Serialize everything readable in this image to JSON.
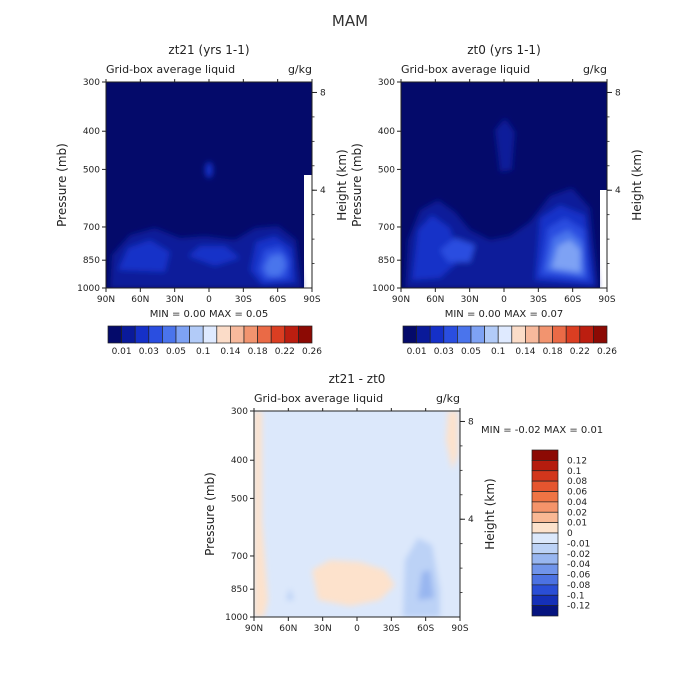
{
  "page_title": "MAM",
  "chart_data": [
    {
      "type": "heatmap",
      "title": "zt21 (yrs 1-1)",
      "subtitle": "Grid-box average liquid",
      "units": "g/kg",
      "ylabel": "Pressure (mb)",
      "ylabel_right": "Height (km)",
      "x_ticks": [
        "90N",
        "60N",
        "30N",
        "0",
        "30S",
        "60S",
        "90S"
      ],
      "y_ticks": [
        "300",
        "400",
        "500",
        "700",
        "850",
        "1000"
      ],
      "y_right_ticks": [
        "8",
        "4"
      ],
      "ylim": [
        300,
        1000
      ],
      "stats": "MIN =    0.00   MAX =    0.05",
      "colorbar": {
        "labels": [
          "0.01",
          "0.03",
          "0.05",
          "0.1",
          "0.14",
          "0.18",
          "0.22",
          "0.26"
        ],
        "colors": [
          "#040a6a",
          "#0a1a9a",
          "#1530c8",
          "#2a4ee0",
          "#4a74ec",
          "#7ea2f4",
          "#b2cbf8",
          "#dfeaff",
          "#fbdcc8",
          "#f7b99c",
          "#f2946f",
          "#ea6a46",
          "#db3e22",
          "#bc1e10",
          "#8c0a04"
        ]
      },
      "max_value": 0.05
    },
    {
      "type": "heatmap",
      "title": "zt0 (yrs 1-1)",
      "subtitle": "Grid-box average liquid",
      "units": "g/kg",
      "ylabel": "Pressure (mb)",
      "ylabel_right": "Height (km)",
      "x_ticks": [
        "90N",
        "60N",
        "30N",
        "0",
        "30S",
        "60S",
        "90S"
      ],
      "y_ticks": [
        "300",
        "400",
        "500",
        "700",
        "850",
        "1000"
      ],
      "y_right_ticks": [
        "8",
        "4"
      ],
      "ylim": [
        300,
        1000
      ],
      "stats": "MIN =    0.00   MAX =    0.07",
      "colorbar": {
        "labels": [
          "0.01",
          "0.03",
          "0.05",
          "0.1",
          "0.14",
          "0.18",
          "0.22",
          "0.26"
        ],
        "colors": [
          "#040a6a",
          "#0a1a9a",
          "#1530c8",
          "#2a4ee0",
          "#4a74ec",
          "#7ea2f4",
          "#b2cbf8",
          "#dfeaff",
          "#fbdcc8",
          "#f7b99c",
          "#f2946f",
          "#ea6a46",
          "#db3e22",
          "#bc1e10",
          "#8c0a04"
        ]
      },
      "max_value": 0.07
    },
    {
      "type": "heatmap",
      "title": "zt21 - zt0",
      "subtitle": "Grid-box average liquid",
      "units": "g/kg",
      "ylabel": "Pressure (mb)",
      "ylabel_right": "Height (km)",
      "x_ticks": [
        "90N",
        "60N",
        "30N",
        "0",
        "30S",
        "60S",
        "90S"
      ],
      "y_ticks": [
        "300",
        "400",
        "500",
        "700",
        "850",
        "1000"
      ],
      "y_right_ticks": [
        "8",
        "4"
      ],
      "ylim": [
        300,
        1000
      ],
      "stats": "MIN =   -0.02   MAX =    0.01",
      "colorbar": {
        "labels": [
          "0.12",
          "0.1",
          "0.08",
          "0.06",
          "0.04",
          "0.02",
          "0.01",
          "0",
          "-0.01",
          "-0.02",
          "-0.04",
          "-0.06",
          "-0.08",
          "-0.1",
          "-0.12"
        ],
        "colors": [
          "#8c0a04",
          "#b51c0e",
          "#d2361c",
          "#e5552f",
          "#f07444",
          "#f5946a",
          "#f9b894",
          "#fde2cc",
          "#dce8fb",
          "#bcd2f6",
          "#98b6f0",
          "#7094ea",
          "#4c72e2",
          "#2a4ed6",
          "#1530b8",
          "#061480"
        ]
      },
      "min_value": -0.02,
      "max_value": 0.01
    }
  ]
}
